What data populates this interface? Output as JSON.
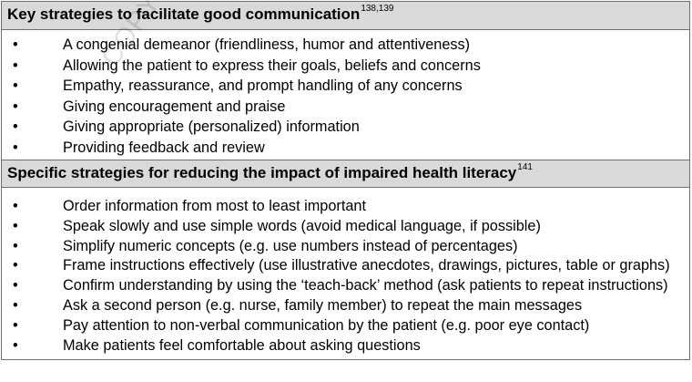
{
  "watermark": "COPYRIGHTED",
  "sections": [
    {
      "title": "Key strategies to facilitate good communication",
      "ref": "138,139",
      "items": [
        "A congenial demeanor (friendliness, humor and attentiveness)",
        "Allowing the patient to express their goals, beliefs and concerns",
        "Empathy, reassurance, and prompt handling of any concerns",
        "Giving encouragement and praise",
        "Giving appropriate (personalized) information",
        "Providing feedback and review"
      ]
    },
    {
      "title": "Specific strategies for reducing the impact of impaired health literacy",
      "ref": "141",
      "items": [
        "Order information from most to least important",
        "Speak slowly and use simple words (avoid medical language, if possible)",
        "Simplify numeric concepts (e.g. use numbers instead of percentages)",
        "Frame instructions effectively (use illustrative anecdotes, drawings, pictures, table or graphs)",
        "Confirm understanding by using the ‘teach-back’ method (ask patients to repeat instructions)",
        "Ask a second person (e.g. nurse, family member) to repeat the main messages",
        "Pay attention to non-verbal communication by the patient (e.g. poor eye contact)",
        "Make patients feel comfortable about asking questions"
      ]
    }
  ]
}
